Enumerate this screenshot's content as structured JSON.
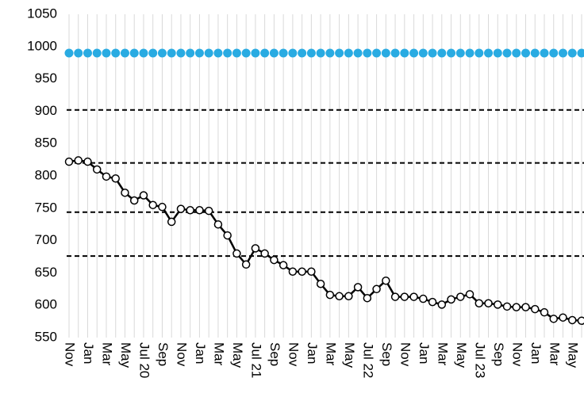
{
  "chart_data": {
    "type": "line",
    "categories": [
      "Nov",
      null,
      "Jan",
      null,
      "Mar",
      null,
      "May",
      null,
      "Jul 20",
      null,
      "Sep",
      null,
      "Nov",
      null,
      "Jan",
      null,
      "Mar",
      null,
      "May",
      null,
      "Jul 21",
      null,
      "Sep",
      null,
      "Nov",
      null,
      "Jan",
      null,
      "Mar",
      null,
      "May",
      null,
      "Jul 22",
      null,
      "Sep",
      null,
      "Nov",
      null,
      "Jan",
      null,
      "Mar",
      null,
      "May",
      null,
      "Jul 23",
      null,
      "Sep",
      null,
      "Nov",
      null,
      "Jan",
      null,
      "Mar",
      null,
      "May",
      null
    ],
    "series": [
      {
        "color": "#29abe2",
        "marker": "filled",
        "line": false,
        "values": [
          990,
          990,
          990,
          990,
          990,
          990,
          990,
          990,
          990,
          990,
          990,
          990,
          990,
          990,
          990,
          990,
          990,
          990,
          990,
          990,
          990,
          990,
          990,
          990,
          990,
          990,
          990,
          990,
          990,
          990,
          990,
          990,
          990,
          990,
          990,
          990,
          990,
          990,
          990,
          990,
          990,
          990,
          990,
          990,
          990,
          990,
          990,
          990,
          990,
          990,
          990,
          990,
          990,
          990,
          990,
          990
        ]
      },
      {
        "color": "#000000",
        "marker": "open",
        "line": true,
        "values": [
          822,
          824,
          822,
          810,
          799,
          796,
          774,
          762,
          770,
          755,
          752,
          729,
          749,
          747,
          747,
          746,
          725,
          708,
          680,
          663,
          688,
          680,
          670,
          662,
          652,
          652,
          652,
          633,
          616,
          614,
          614,
          628,
          611,
          625,
          638,
          613,
          613,
          613,
          610,
          605,
          601,
          609,
          613,
          617,
          603,
          603,
          601,
          598,
          597,
          597,
          594,
          589,
          579,
          581,
          577,
          576
        ]
      }
    ],
    "reference_lines": [
      902,
      820,
      744,
      676
    ],
    "ylim": [
      550,
      1050
    ],
    "yticks": [
      550,
      600,
      650,
      700,
      750,
      800,
      850,
      900,
      950,
      1000,
      1050
    ],
    "grid": "vertical"
  }
}
